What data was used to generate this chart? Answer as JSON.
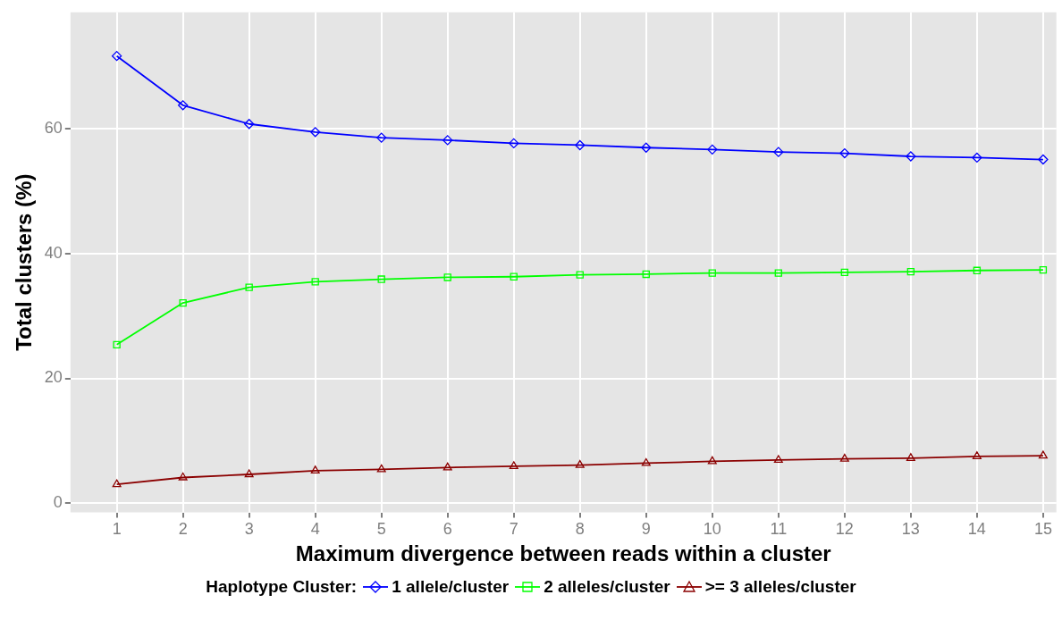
{
  "chart_data": {
    "type": "line",
    "xlabel": "Maximum divergence between reads within a cluster",
    "ylabel": "Total clusters (%)",
    "legend_title": "Haplotype Cluster:",
    "legend": "bottom",
    "grid": true,
    "x": [
      1,
      2,
      3,
      4,
      5,
      6,
      7,
      8,
      9,
      10,
      11,
      12,
      13,
      14,
      15
    ],
    "xlim": [
      0.3,
      15.2
    ],
    "xticks": [
      1,
      2,
      3,
      4,
      5,
      6,
      7,
      8,
      9,
      10,
      11,
      12,
      13,
      14,
      15
    ],
    "ylim": [
      -1.5,
      78.7
    ],
    "yticks": [
      0,
      20,
      40,
      60
    ],
    "series": [
      {
        "name": "1 allele/cluster",
        "color": "#0000ff",
        "marker": "diamond",
        "values": [
          71.7,
          63.8,
          60.8,
          59.5,
          58.6,
          58.2,
          57.7,
          57.4,
          57.0,
          56.7,
          56.3,
          56.1,
          55.6,
          55.4,
          55.1
        ]
      },
      {
        "name": "2 alleles/cluster",
        "color": "#00ff00",
        "marker": "square",
        "values": [
          25.4,
          32.1,
          34.6,
          35.5,
          35.9,
          36.2,
          36.3,
          36.6,
          36.7,
          36.9,
          36.9,
          37.0,
          37.1,
          37.3,
          37.4
        ]
      },
      {
        "name": ">= 3 alleles/cluster",
        "color": "#8b0000",
        "marker": "triangle",
        "values": [
          3.0,
          4.1,
          4.6,
          5.2,
          5.4,
          5.7,
          5.9,
          6.1,
          6.4,
          6.7,
          6.9,
          7.1,
          7.2,
          7.5,
          7.6
        ]
      }
    ]
  }
}
